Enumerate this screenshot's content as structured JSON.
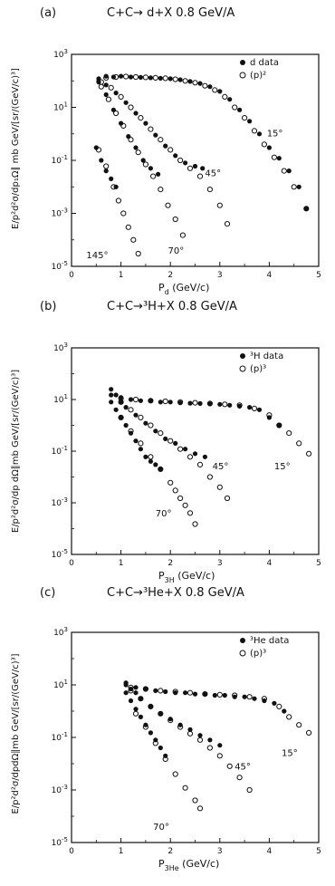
{
  "chart_data": [
    {
      "type": "scatter",
      "panel_label": "(a)",
      "title": "C+C→ d+X  0.8 GeV/A",
      "xlabel_main": "P",
      "xlabel_sub": "d",
      "xlabel_unit": "(GeV/c)",
      "ylabel": "E/p²d²σ/dp₁Ω∥ mb GeV/[sr/(GeV/c)³]",
      "xlim": [
        0,
        5
      ],
      "ylim_log10": [
        -5,
        3
      ],
      "x_ticks": [
        "0",
        "1",
        "2",
        "3",
        "4",
        "5"
      ],
      "y_ticks": [
        {
          "base": "10",
          "exp": "3"
        },
        {
          "base": "10",
          "exp": "1"
        },
        {
          "base": "10",
          "exp": "-1"
        },
        {
          "base": "10",
          "exp": "-3"
        },
        {
          "base": "10",
          "exp": "-5"
        }
      ],
      "legend": [
        {
          "label": "d data",
          "marker": "filled"
        },
        {
          "label": "(p)²",
          "marker": "open"
        }
      ],
      "series": [
        {
          "angle": "15°",
          "label_at": [
            3.95,
            0.8
          ],
          "data": {
            "x": [
              0.55,
              0.7,
              0.85,
              1.0,
              1.2,
              1.4,
              1.6,
              1.8,
              2.0,
              2.2,
              2.4,
              2.6,
              2.8,
              3.0,
              3.2,
              3.4,
              3.6,
              3.8,
              4.0,
              4.2,
              4.4,
              4.6,
              4.75
            ],
            "y": [
              100,
              150,
              140,
              150,
              140,
              135,
              130,
              125,
              120,
              110,
              95,
              80,
              60,
              40,
              20,
              8,
              3,
              1,
              0.3,
              0.12,
              0.04,
              0.01,
              0.0015
            ]
          },
          "model": {
            "x": [
              0.7,
              0.9,
              1.1,
              1.3,
              1.5,
              1.7,
              1.9,
              2.1,
              2.3,
              2.5,
              2.7,
              2.9,
              3.1,
              3.3,
              3.5,
              3.7,
              3.9,
              4.1,
              4.3,
              4.5,
              4.75
            ],
            "y": [
              130,
              140,
              145,
              140,
              135,
              130,
              125,
              115,
              100,
              85,
              65,
              45,
              25,
              10,
              4,
              1.3,
              0.4,
              0.13,
              0.04,
              0.01,
              0.0015
            ]
          }
        },
        {
          "angle": "45°",
          "label_at": [
            2.7,
            0.025
          ],
          "data": {
            "x": [
              0.55,
              0.7,
              0.9,
              1.1,
              1.3,
              1.5,
              1.7,
              1.9,
              2.1,
              2.3,
              2.5,
              2.65
            ],
            "y": [
              120,
              70,
              35,
              15,
              6,
              2.5,
              0.9,
              0.35,
              0.15,
              0.08,
              0.06,
              0.05
            ]
          },
          "model": {
            "x": [
              0.6,
              0.8,
              1.0,
              1.2,
              1.4,
              1.6,
              1.8,
              2.0,
              2.2,
              2.4,
              2.6,
              2.8,
              3.0,
              3.15
            ],
            "y": [
              90,
              55,
              25,
              10,
              4,
              1.5,
              0.6,
              0.25,
              0.1,
              0.05,
              0.025,
              0.008,
              0.002,
              0.0004
            ]
          }
        },
        {
          "angle": "70°",
          "label_at": [
            1.95,
            3e-05
          ],
          "data": {
            "x": [
              0.55,
              0.7,
              0.85,
              1.0,
              1.15,
              1.3,
              1.45,
              1.6,
              1.75
            ],
            "y": [
              90,
              30,
              8,
              2.5,
              0.8,
              0.3,
              0.1,
              0.05,
              0.03
            ]
          },
          "model": {
            "x": [
              0.6,
              0.75,
              0.9,
              1.05,
              1.2,
              1.35,
              1.5,
              1.65,
              1.8,
              1.95,
              2.1,
              2.25
            ],
            "y": [
              60,
              20,
              6,
              2,
              0.6,
              0.2,
              0.07,
              0.025,
              0.008,
              0.002,
              0.0006,
              0.00015
            ]
          }
        },
        {
          "angle": "145°",
          "label_at": [
            0.3,
            2e-05
          ],
          "data": {
            "x": [
              0.5,
              0.6,
              0.7,
              0.8,
              0.9
            ],
            "y": [
              0.3,
              0.1,
              0.04,
              0.02,
              0.01
            ]
          },
          "model": {
            "x": [
              0.55,
              0.7,
              0.85,
              0.95,
              1.05,
              1.15,
              1.25,
              1.35
            ],
            "y": [
              0.25,
              0.06,
              0.01,
              0.003,
              0.001,
              0.0003,
              0.0001,
              3e-05
            ]
          }
        }
      ]
    },
    {
      "type": "scatter",
      "panel_label": "(b)",
      "title": "C+C→³H+X  0.8 GeV/A",
      "xlabel_main": "P",
      "xlabel_sub": "3H",
      "xlabel_unit": "(GeV/c)",
      "ylabel": "E/p²d²σ/dp dΩ∥mb GeV/[sr/(GeV/c)³]",
      "xlim": [
        0,
        5
      ],
      "ylim_log10": [
        -5,
        3
      ],
      "x_ticks": [
        "0",
        "1",
        "2",
        "3",
        "4",
        "5"
      ],
      "y_ticks": [
        {
          "base": "10",
          "exp": "3"
        },
        {
          "base": "10",
          "exp": "1"
        },
        {
          "base": "10",
          "exp": "-1"
        },
        {
          "base": "10",
          "exp": "-3"
        },
        {
          "base": "10",
          "exp": "-5"
        }
      ],
      "legend": [
        {
          "label": "³H data",
          "marker": "filled"
        },
        {
          "label": "(p)³",
          "marker": "open"
        }
      ],
      "series": [
        {
          "angle": "15°",
          "label_at": [
            4.1,
            0.02
          ],
          "data": {
            "x": [
              0.8,
              1.0,
              1.2,
              1.4,
              1.6,
              1.8,
              2.0,
              2.2,
              2.4,
              2.6,
              2.8,
              3.0,
              3.2,
              3.4,
              3.6,
              3.8,
              4.0,
              4.2
            ],
            "y": [
              15,
              12,
              10,
              9,
              9,
              8,
              8,
              7.5,
              7.2,
              7,
              6.8,
              6.5,
              6,
              5.5,
              5,
              4,
              2,
              1
            ]
          },
          "model": {
            "x": [
              1.0,
              1.3,
              1.6,
              1.9,
              2.2,
              2.5,
              2.8,
              3.1,
              3.4,
              3.7,
              4.0,
              4.2,
              4.4,
              4.6,
              4.8
            ],
            "y": [
              11,
              10,
              9,
              8.5,
              8,
              7.5,
              7,
              6.5,
              6,
              4.5,
              2.5,
              1,
              0.5,
              0.2,
              0.08
            ]
          }
        },
        {
          "angle": "45°",
          "label_at": [
            2.85,
            0.02
          ],
          "data": {
            "x": [
              0.8,
              0.9,
              1.0,
              1.1,
              1.3,
              1.5,
              1.7,
              1.9,
              2.1,
              2.3,
              2.5,
              2.7
            ],
            "y": [
              25,
              15,
              8,
              5,
              2.5,
              1.2,
              0.6,
              0.3,
              0.2,
              0.12,
              0.08,
              0.06
            ]
          },
          "model": {
            "x": [
              1.0,
              1.2,
              1.4,
              1.6,
              1.8,
              2.0,
              2.2,
              2.4,
              2.6,
              2.8,
              3.0,
              3.15
            ],
            "y": [
              8,
              4,
              2,
              1,
              0.5,
              0.25,
              0.12,
              0.06,
              0.03,
              0.01,
              0.004,
              0.0015
            ]
          }
        },
        {
          "angle": "70°",
          "label_at": [
            1.7,
            0.0003
          ],
          "data": {
            "x": [
              0.8,
              0.9,
              1.0,
              1.1,
              1.2,
              1.3,
              1.4,
              1.5,
              1.6,
              1.7,
              1.8
            ],
            "y": [
              8,
              4,
              2,
              1,
              0.5,
              0.25,
              0.12,
              0.06,
              0.04,
              0.03,
              0.02
            ]
          },
          "model": {
            "x": [
              1.0,
              1.2,
              1.4,
              1.6,
              1.8,
              2.0,
              2.1,
              2.2,
              2.3,
              2.4,
              2.5
            ],
            "y": [
              2,
              0.6,
              0.2,
              0.06,
              0.02,
              0.006,
              0.003,
              0.0015,
              0.0008,
              0.0004,
              0.00015
            ]
          }
        }
      ]
    },
    {
      "type": "scatter",
      "panel_label": "(c)",
      "title": "C+C→³He+X  0.8 GeV/A",
      "xlabel_main": "P",
      "xlabel_sub": "3He",
      "xlabel_unit": "(GeV/c)",
      "ylabel": "E/p²d²σ/dpdΩ∥mb GeV/[sr/(GeV/c)³]",
      "xlim": [
        0,
        5
      ],
      "ylim_log10": [
        -5,
        3
      ],
      "x_ticks": [
        "0",
        "1",
        "2",
        "3",
        "4",
        "5"
      ],
      "y_ticks": [
        {
          "base": "10",
          "exp": "3"
        },
        {
          "base": "10",
          "exp": "1"
        },
        {
          "base": "10",
          "exp": "-1"
        },
        {
          "base": "10",
          "exp": "-3"
        },
        {
          "base": "10",
          "exp": "-5"
        }
      ],
      "legend": [
        {
          "label": "³He data",
          "marker": "filled"
        },
        {
          "label": "(p)³",
          "marker": "open"
        }
      ],
      "series": [
        {
          "angle": "15°",
          "label_at": [
            4.25,
            0.02
          ],
          "data": {
            "x": [
              1.1,
              1.3,
              1.5,
              1.7,
              1.9,
              2.1,
              2.3,
              2.5,
              2.7,
              2.9,
              3.1,
              3.3,
              3.5,
              3.7,
              3.9,
              4.1,
              4.3
            ],
            "y": [
              10,
              8,
              7,
              6,
              5.5,
              5,
              5,
              4.5,
              4.5,
              4,
              4,
              3.5,
              3.5,
              3,
              2.5,
              2,
              1
            ]
          },
          "model": {
            "x": [
              1.2,
              1.5,
              1.8,
              2.1,
              2.4,
              2.7,
              3.0,
              3.3,
              3.6,
              3.9,
              4.2,
              4.4,
              4.6,
              4.8
            ],
            "y": [
              8,
              7,
              6,
              5.5,
              5,
              4.5,
              4.2,
              4,
              3.5,
              3,
              1.5,
              0.6,
              0.3,
              0.15
            ]
          }
        },
        {
          "angle": "45°",
          "label_at": [
            3.3,
            0.006
          ],
          "data": {
            "x": [
              1.1,
              1.2,
              1.3,
              1.4,
              1.6,
              1.8,
              2.0,
              2.2,
              2.4,
              2.6,
              2.8,
              3.0
            ],
            "y": [
              12,
              7,
              5,
              3,
              1.5,
              0.8,
              0.5,
              0.3,
              0.2,
              0.12,
              0.08,
              0.05
            ]
          },
          "model": {
            "x": [
              1.2,
              1.4,
              1.6,
              1.8,
              2.0,
              2.2,
              2.4,
              2.6,
              2.8,
              3.0,
              3.2,
              3.4,
              3.6
            ],
            "y": [
              6,
              3,
              1.5,
              0.8,
              0.45,
              0.25,
              0.14,
              0.08,
              0.04,
              0.02,
              0.008,
              0.003,
              0.001
            ]
          }
        },
        {
          "angle": "70°",
          "label_at": [
            1.65,
            3e-05
          ],
          "data": {
            "x": [
              1.1,
              1.2,
              1.3,
              1.4,
              1.5,
              1.6,
              1.7,
              1.8,
              1.9
            ],
            "y": [
              5,
              2.5,
              1.2,
              0.6,
              0.3,
              0.15,
              0.08,
              0.04,
              0.02
            ]
          },
          "model": {
            "x": [
              1.3,
              1.5,
              1.7,
              1.9,
              2.1,
              2.3,
              2.5,
              2.6
            ],
            "y": [
              0.8,
              0.25,
              0.06,
              0.015,
              0.004,
              0.0012,
              0.0004,
              0.0002
            ]
          }
        }
      ]
    }
  ]
}
